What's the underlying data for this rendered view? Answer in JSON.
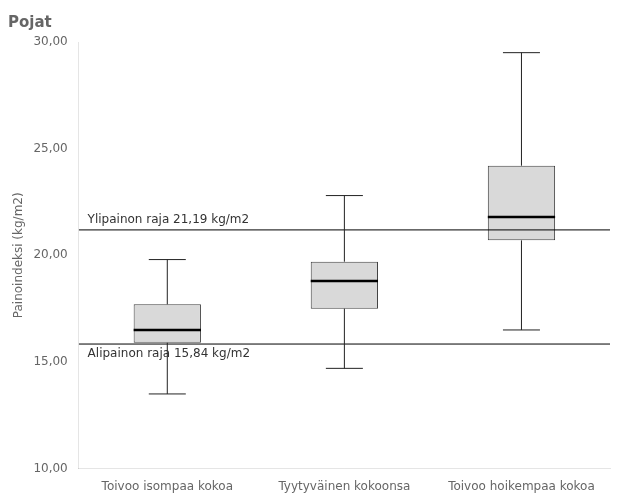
{
  "chart_data": {
    "type": "box",
    "title": "Pojat",
    "ylabel": "Painoindeksi (kg/m2)",
    "categories": [
      "Toivoo isompaa kokoa",
      "Tyytyväinen kokoonsa",
      "Toivoo hoikempaa kokoa"
    ],
    "boxes": [
      {
        "whisker_low": 13.5,
        "q1": 15.9,
        "median": 16.5,
        "q3": 17.7,
        "whisker_high": 19.8
      },
      {
        "whisker_low": 14.7,
        "q1": 17.5,
        "median": 18.8,
        "q3": 19.7,
        "whisker_high": 22.8
      },
      {
        "whisker_low": 16.5,
        "q1": 20.7,
        "median": 21.8,
        "q3": 24.2,
        "whisker_high": 29.5
      }
    ],
    "color": "#d9d9d9",
    "hlines": [
      {
        "value": 21.19,
        "label": "Ylipainon raja 21,19 kg/m2"
      },
      {
        "value": 15.84,
        "label": "Alipainon raja 15,84 kg/m2"
      }
    ],
    "ylim": [
      10.0,
      30.0
    ],
    "yticks": [
      {
        "value": 10.0,
        "label": "10,00"
      },
      {
        "value": 15.0,
        "label": "15,00"
      },
      {
        "value": 20.0,
        "label": "20,00"
      },
      {
        "value": 25.0,
        "label": "25,00"
      },
      {
        "value": 30.0,
        "label": "30,00"
      }
    ],
    "grid": false
  }
}
